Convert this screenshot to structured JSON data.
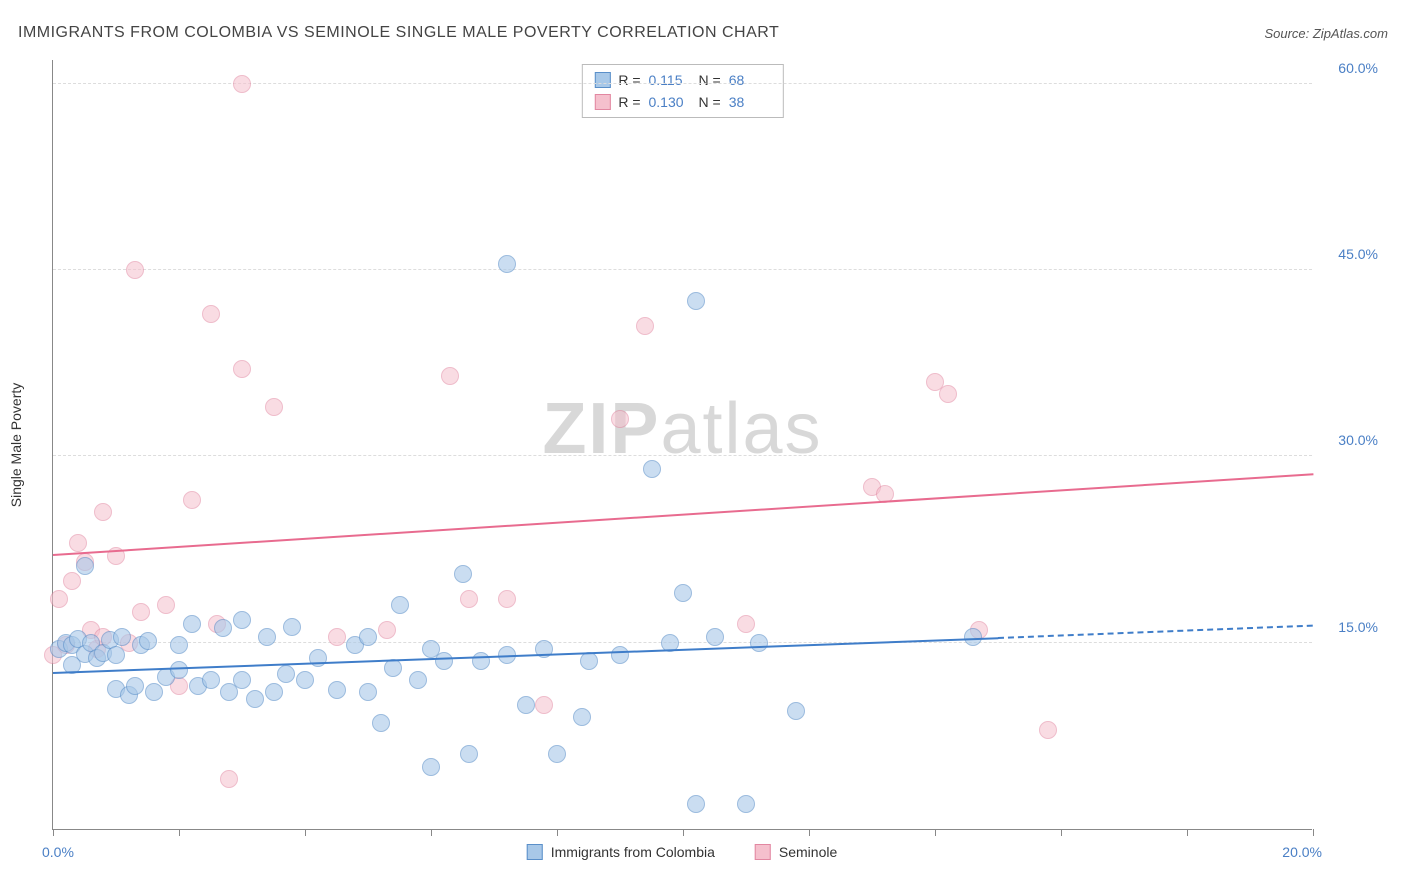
{
  "title": "IMMIGRANTS FROM COLOMBIA VS SEMINOLE SINGLE MALE POVERTY CORRELATION CHART",
  "source_prefix": "Source: ",
  "source_name": "ZipAtlas.com",
  "watermark_bold": "ZIP",
  "watermark_light": "atlas",
  "ylabel": "Single Male Poverty",
  "axes": {
    "xlim": [
      0,
      20
    ],
    "ylim": [
      0,
      62
    ],
    "x_start_label": "0.0%",
    "x_end_label": "20.0%",
    "xtick_positions": [
      0,
      2,
      4,
      6,
      8,
      10,
      12,
      14,
      16,
      18,
      20
    ],
    "yticks": [
      {
        "v": 15,
        "label": "15.0%"
      },
      {
        "v": 30,
        "label": "30.0%"
      },
      {
        "v": 45,
        "label": "45.0%"
      },
      {
        "v": 60,
        "label": "60.0%"
      }
    ],
    "grid_color": "#dddddd",
    "axis_color": "#888888",
    "tick_label_color": "#4a7fc5"
  },
  "series": [
    {
      "name": "Immigrants from Colombia",
      "label": "Immigrants from Colombia",
      "fill": "#a8c8e8",
      "stroke": "#5a8fc9",
      "marker_radius": 9,
      "fill_opacity": 0.6,
      "reg": {
        "x1": 0,
        "y1": 12.5,
        "x2": 15,
        "y2": 15.3,
        "x2_dash": 20,
        "y2_dash": 16.3,
        "color": "#3f7dc9",
        "width": 2
      },
      "R_label": "R =",
      "R": "0.115",
      "N_label": "N =",
      "N": "68",
      "points": [
        [
          0.1,
          14.5
        ],
        [
          0.2,
          15.0
        ],
        [
          0.3,
          13.2
        ],
        [
          0.3,
          14.8
        ],
        [
          0.4,
          15.3
        ],
        [
          0.5,
          14.1
        ],
        [
          0.5,
          21.2
        ],
        [
          0.6,
          15.0
        ],
        [
          0.7,
          13.8
        ],
        [
          0.8,
          14.2
        ],
        [
          0.9,
          15.2
        ],
        [
          1.0,
          11.3
        ],
        [
          1.0,
          14.0
        ],
        [
          1.1,
          15.5
        ],
        [
          1.2,
          10.8
        ],
        [
          1.3,
          11.5
        ],
        [
          1.4,
          14.8
        ],
        [
          1.5,
          15.1
        ],
        [
          1.6,
          11.0
        ],
        [
          1.8,
          12.2
        ],
        [
          2.0,
          12.8
        ],
        [
          2.0,
          14.8
        ],
        [
          2.2,
          16.5
        ],
        [
          2.3,
          11.5
        ],
        [
          2.5,
          12.0
        ],
        [
          2.7,
          16.2
        ],
        [
          2.8,
          11.0
        ],
        [
          3.0,
          16.8
        ],
        [
          3.0,
          12.0
        ],
        [
          3.2,
          10.5
        ],
        [
          3.4,
          15.5
        ],
        [
          3.5,
          11.0
        ],
        [
          3.7,
          12.5
        ],
        [
          3.8,
          16.3
        ],
        [
          4.0,
          12.0
        ],
        [
          4.2,
          13.8
        ],
        [
          4.5,
          11.2
        ],
        [
          4.8,
          14.8
        ],
        [
          5.0,
          15.5
        ],
        [
          5.0,
          11.0
        ],
        [
          5.2,
          8.5
        ],
        [
          5.4,
          13.0
        ],
        [
          5.5,
          18.0
        ],
        [
          5.8,
          12.0
        ],
        [
          6.0,
          5.0
        ],
        [
          6.0,
          14.5
        ],
        [
          6.2,
          13.5
        ],
        [
          6.5,
          20.5
        ],
        [
          6.6,
          6.0
        ],
        [
          6.8,
          13.5
        ],
        [
          7.2,
          14.0
        ],
        [
          7.2,
          45.5
        ],
        [
          7.5,
          10.0
        ],
        [
          7.8,
          14.5
        ],
        [
          8.0,
          6.0
        ],
        [
          8.4,
          9.0
        ],
        [
          8.5,
          13.5
        ],
        [
          9.0,
          14.0
        ],
        [
          9.5,
          29.0
        ],
        [
          9.8,
          15.0
        ],
        [
          10.0,
          19.0
        ],
        [
          10.2,
          42.5
        ],
        [
          10.2,
          2.0
        ],
        [
          10.5,
          15.5
        ],
        [
          11.0,
          2.0
        ],
        [
          11.2,
          15.0
        ],
        [
          11.8,
          9.5
        ],
        [
          14.6,
          15.5
        ]
      ]
    },
    {
      "name": "Seminole",
      "label": "Seminole",
      "fill": "#f5c0cd",
      "stroke": "#e287a1",
      "marker_radius": 9,
      "fill_opacity": 0.55,
      "reg": {
        "x1": 0,
        "y1": 22.0,
        "x2": 20,
        "y2": 28.5,
        "color": "#e86b8f",
        "width": 2
      },
      "R_label": "R =",
      "R": "0.130",
      "N_label": "N =",
      "N": "38",
      "points": [
        [
          0.0,
          14.0
        ],
        [
          0.1,
          18.5
        ],
        [
          0.2,
          14.8
        ],
        [
          0.3,
          20.0
        ],
        [
          0.4,
          23.0
        ],
        [
          0.5,
          21.5
        ],
        [
          0.6,
          16.0
        ],
        [
          0.7,
          14.5
        ],
        [
          0.8,
          15.5
        ],
        [
          0.8,
          25.5
        ],
        [
          1.0,
          22.0
        ],
        [
          1.2,
          15.0
        ],
        [
          1.3,
          45.0
        ],
        [
          1.4,
          17.5
        ],
        [
          1.8,
          18.0
        ],
        [
          2.0,
          11.5
        ],
        [
          2.2,
          26.5
        ],
        [
          2.5,
          41.5
        ],
        [
          2.6,
          16.5
        ],
        [
          2.8,
          4.0
        ],
        [
          3.0,
          60.0
        ],
        [
          3.0,
          37.0
        ],
        [
          3.5,
          34.0
        ],
        [
          4.5,
          15.5
        ],
        [
          5.3,
          16.0
        ],
        [
          6.3,
          36.5
        ],
        [
          6.6,
          18.5
        ],
        [
          7.2,
          18.5
        ],
        [
          7.8,
          10.0
        ],
        [
          9.0,
          33.0
        ],
        [
          9.4,
          40.5
        ],
        [
          11.0,
          16.5
        ],
        [
          13.0,
          27.5
        ],
        [
          13.2,
          27.0
        ],
        [
          14.0,
          36.0
        ],
        [
          14.2,
          35.0
        ],
        [
          14.7,
          16.0
        ],
        [
          15.8,
          8.0
        ]
      ]
    }
  ]
}
